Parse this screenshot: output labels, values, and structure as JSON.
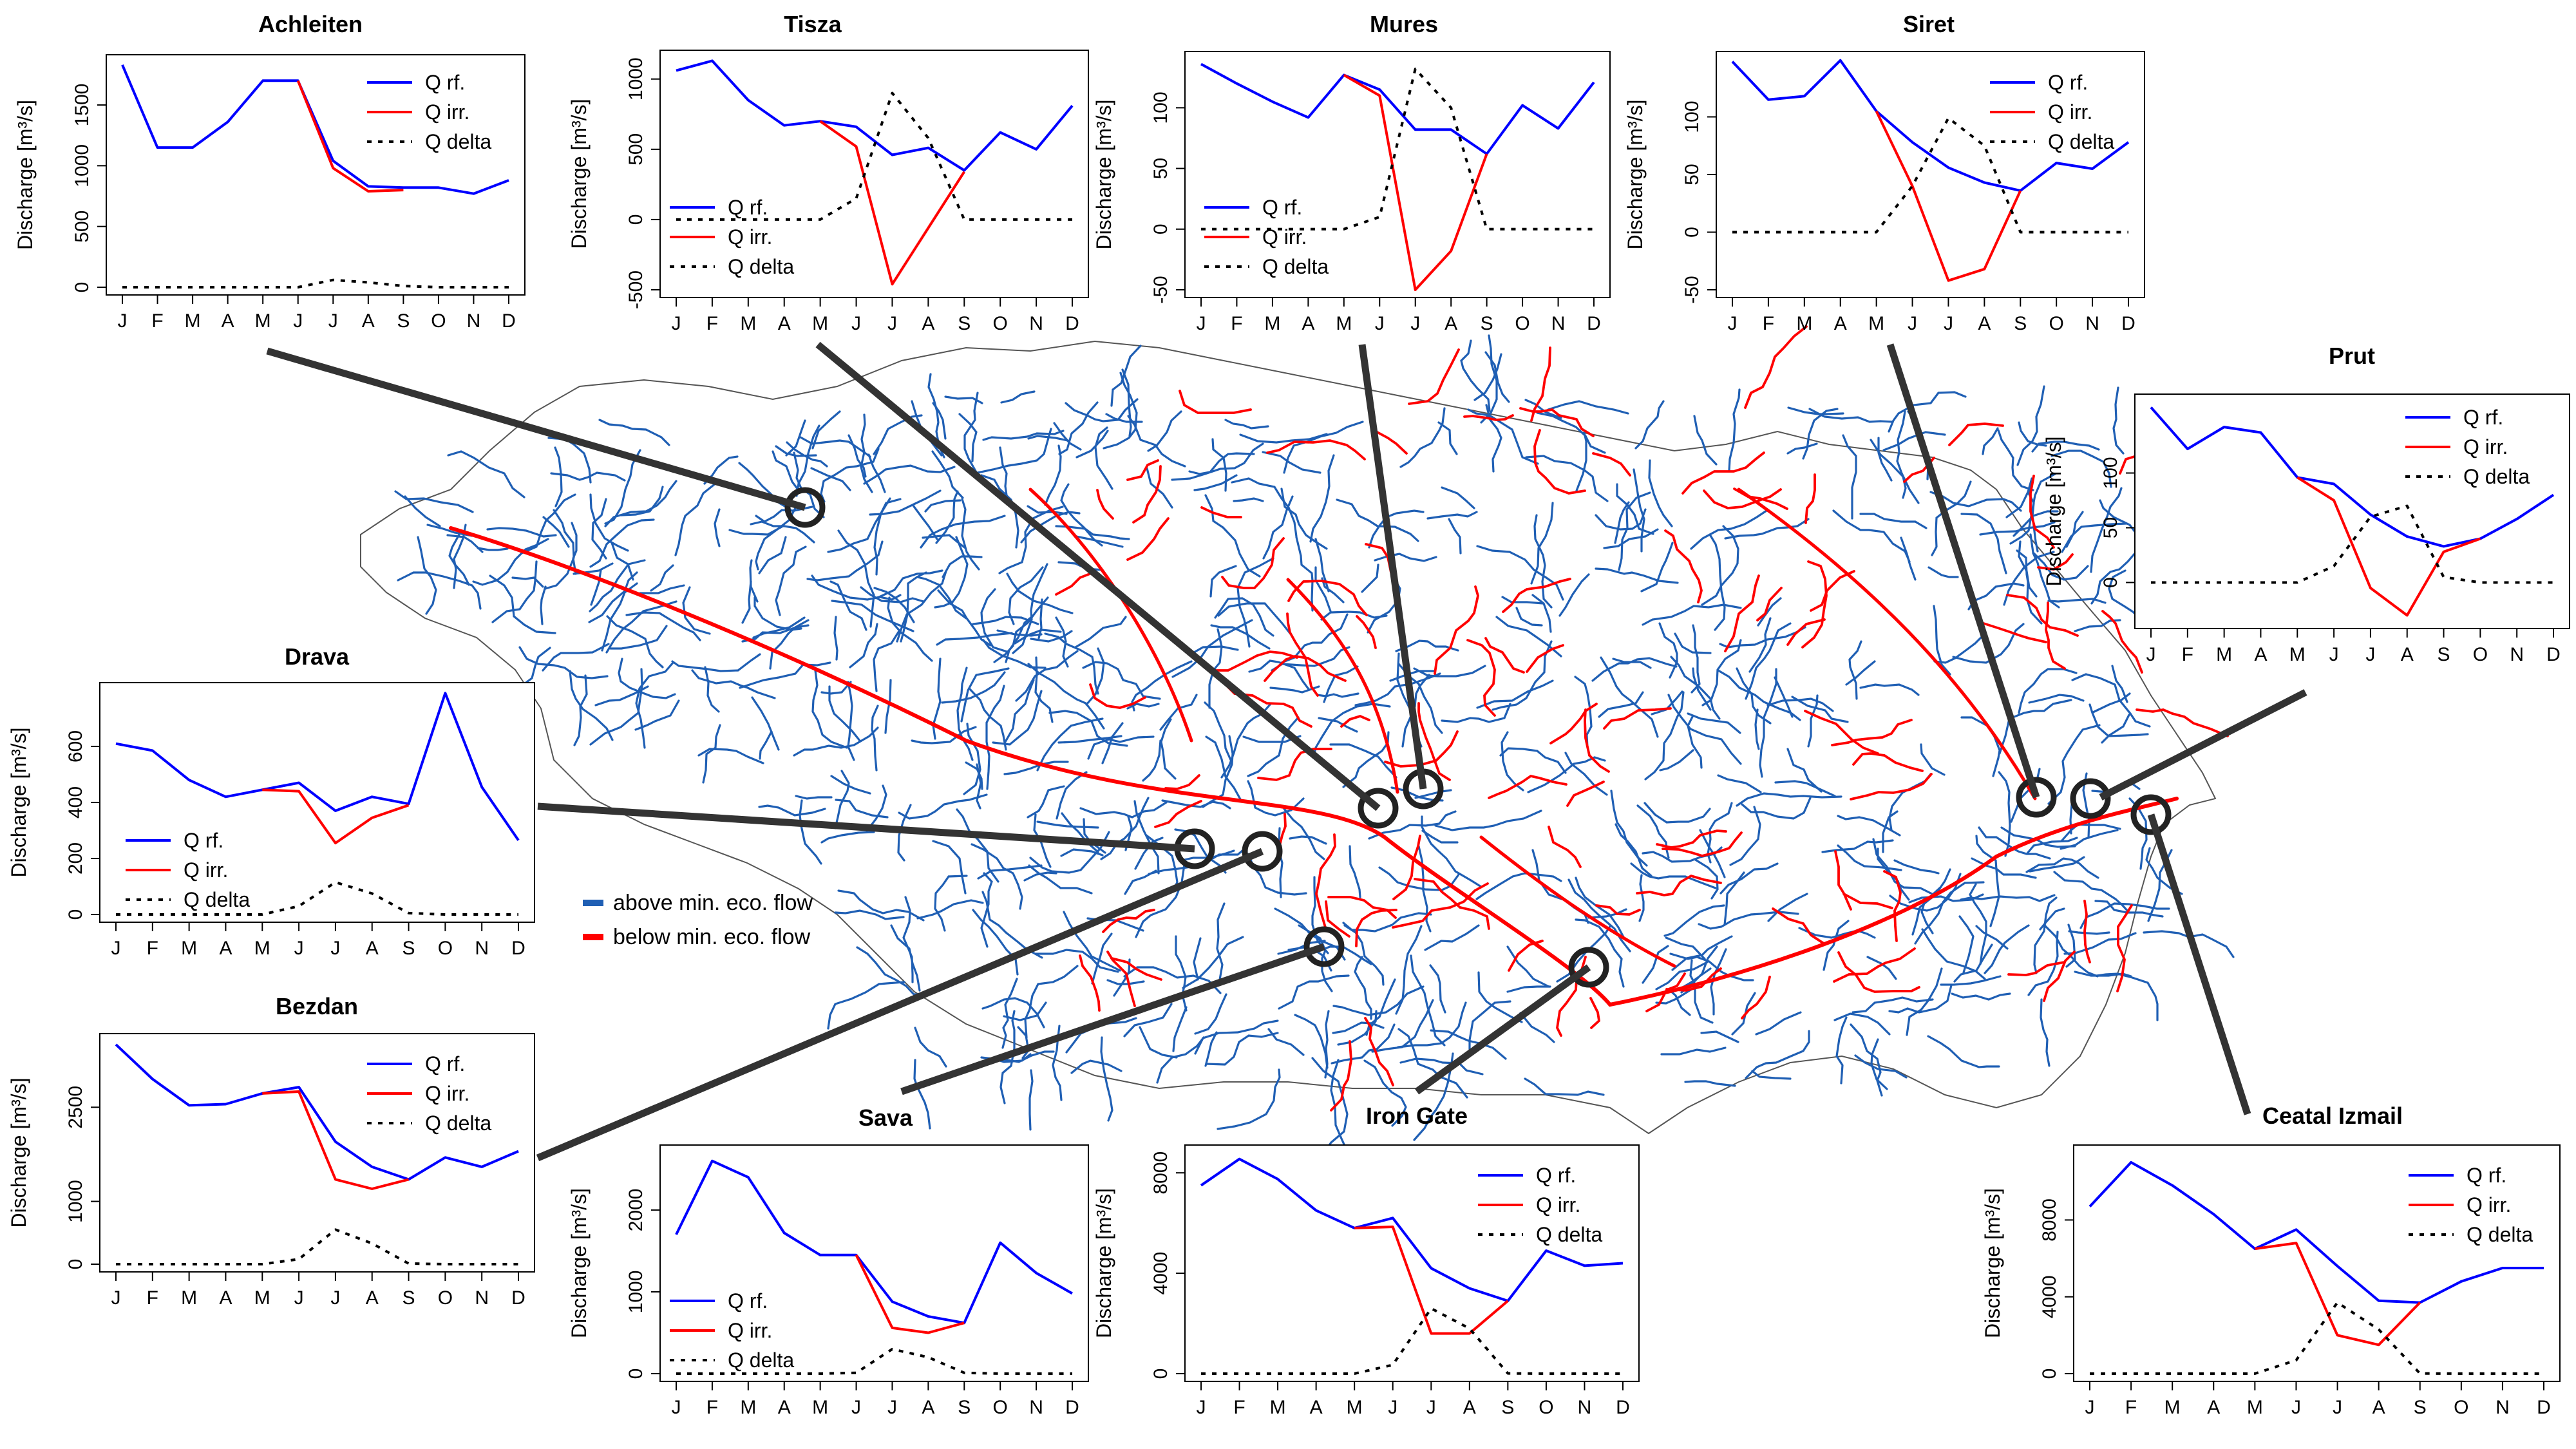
{
  "legend": {
    "above": "above min. eco. flow",
    "below": "below min. eco. flow",
    "above_color": "#1f5fb4",
    "below_color": "#ff0000"
  },
  "colors": {
    "q_rf": "#0000ff",
    "q_irr": "#ff0000",
    "q_delta": "#000000",
    "river_blue": "#1f5fb4",
    "river_red": "#ff0000",
    "connector": "#333333"
  },
  "chart_data": [
    {
      "type": "line",
      "title": "Achleiten",
      "ylabel": "Discharge [m³/s]",
      "categories": [
        "J",
        "F",
        "M",
        "A",
        "M",
        "J",
        "J",
        "A",
        "S",
        "O",
        "N",
        "D"
      ],
      "ylim": [
        0,
        1850
      ],
      "yticks": [
        0,
        500,
        1000,
        1500
      ],
      "legend_labels": [
        "Q rf.",
        "Q irr.",
        "Q delta"
      ],
      "series": [
        {
          "name": "Q rf.",
          "values": [
            1830,
            1150,
            1150,
            1360,
            1700,
            1700,
            1040,
            830,
            820,
            820,
            770,
            880
          ]
        },
        {
          "name": "Q irr.",
          "values": [
            null,
            null,
            null,
            null,
            null,
            1700,
            980,
            790,
            800,
            null,
            null,
            null
          ]
        },
        {
          "name": "Q delta",
          "values": [
            0,
            0,
            0,
            0,
            0,
            0,
            60,
            40,
            10,
            0,
            0,
            0
          ]
        }
      ]
    },
    {
      "type": "line",
      "title": "Tisza",
      "ylabel": "Discharge [m³/s]",
      "categories": [
        "J",
        "F",
        "M",
        "A",
        "M",
        "J",
        "J",
        "A",
        "S",
        "O",
        "N",
        "D"
      ],
      "ylim": [
        -500,
        1150
      ],
      "yticks": [
        -500,
        0,
        500,
        1000
      ],
      "legend_labels": [
        "Q rf.",
        "Q irr.",
        "Q delta"
      ],
      "series": [
        {
          "name": "Q rf.",
          "values": [
            1060,
            1130,
            850,
            670,
            700,
            660,
            460,
            510,
            350,
            620,
            500,
            810
          ]
        },
        {
          "name": "Q irr.",
          "values": [
            null,
            null,
            null,
            null,
            700,
            520,
            -460,
            -60,
            340,
            null,
            null,
            null
          ]
        },
        {
          "name": "Q delta",
          "values": [
            0,
            0,
            0,
            0,
            0,
            150,
            900,
            580,
            0,
            0,
            0,
            0
          ]
        }
      ]
    },
    {
      "type": "line",
      "title": "Mures",
      "ylabel": "Discharge [m³/s]",
      "categories": [
        "J",
        "F",
        "M",
        "A",
        "M",
        "J",
        "J",
        "A",
        "S",
        "O",
        "N",
        "D"
      ],
      "ylim": [
        -50,
        140
      ],
      "yticks": [
        -50,
        0,
        50,
        100
      ],
      "legend_labels": [
        "Q rf.",
        "Q irr.",
        "Q delta"
      ],
      "series": [
        {
          "name": "Q rf.",
          "values": [
            136,
            120,
            105,
            92,
            127,
            115,
            82,
            82,
            62,
            102,
            83,
            121
          ]
        },
        {
          "name": "Q irr.",
          "values": [
            null,
            null,
            null,
            null,
            127,
            110,
            -50,
            -18,
            62,
            null,
            null,
            null
          ]
        },
        {
          "name": "Q delta",
          "values": [
            0,
            0,
            0,
            0,
            0,
            10,
            132,
            100,
            0,
            0,
            0,
            0
          ]
        }
      ]
    },
    {
      "type": "line",
      "title": "Siret",
      "ylabel": "Discharge [m³/s]",
      "categories": [
        "J",
        "F",
        "M",
        "A",
        "M",
        "J",
        "J",
        "A",
        "S",
        "O",
        "N",
        "D"
      ],
      "ylim": [
        -50,
        150
      ],
      "yticks": [
        -50,
        0,
        50,
        100
      ],
      "legend_labels": [
        "Q rf.",
        "Q irr.",
        "Q delta"
      ],
      "series": [
        {
          "name": "Q rf.",
          "values": [
            148,
            115,
            118,
            149,
            105,
            78,
            56,
            43,
            36,
            60,
            55,
            78
          ]
        },
        {
          "name": "Q irr.",
          "values": [
            null,
            null,
            null,
            null,
            105,
            40,
            -42,
            -32,
            36,
            null,
            null,
            null
          ]
        },
        {
          "name": "Q delta",
          "values": [
            0,
            0,
            0,
            0,
            0,
            40,
            99,
            75,
            0,
            0,
            0,
            0
          ]
        }
      ]
    },
    {
      "type": "line",
      "title": "Prut",
      "ylabel": "Discharge [m³/s]",
      "categories": [
        "J",
        "F",
        "M",
        "A",
        "M",
        "J",
        "J",
        "A",
        "S",
        "O",
        "N",
        "D"
      ],
      "ylim": [
        -35,
        165
      ],
      "yticks": [
        0,
        50,
        100
      ],
      "legend_labels": [
        "Q rf.",
        "Q irr.",
        "Q delta"
      ],
      "series": [
        {
          "name": "Q rf.",
          "values": [
            160,
            122,
            142,
            137,
            96,
            90,
            62,
            42,
            33,
            40,
            58,
            80
          ]
        },
        {
          "name": "Q irr.",
          "values": [
            null,
            null,
            null,
            null,
            96,
            75,
            -5,
            -30,
            28,
            40,
            null,
            null
          ]
        },
        {
          "name": "Q delta",
          "values": [
            0,
            0,
            0,
            0,
            0,
            15,
            60,
            70,
            5,
            0,
            0,
            0
          ]
        }
      ]
    },
    {
      "type": "line",
      "title": "Drava",
      "ylabel": "Discharge [m³/s]",
      "categories": [
        "J",
        "F",
        "M",
        "A",
        "M",
        "J",
        "J",
        "A",
        "S",
        "O",
        "N",
        "D"
      ],
      "ylim": [
        0,
        800
      ],
      "yticks": [
        0,
        200,
        400,
        600
      ],
      "legend_labels": [
        "Q rf.",
        "Q irr.",
        "Q delta"
      ],
      "series": [
        {
          "name": "Q rf.",
          "values": [
            610,
            585,
            480,
            420,
            445,
            470,
            370,
            420,
            395,
            790,
            455,
            265
          ]
        },
        {
          "name": "Q irr.",
          "values": [
            null,
            null,
            null,
            null,
            445,
            440,
            255,
            345,
            390,
            null,
            null,
            null
          ]
        },
        {
          "name": "Q delta",
          "values": [
            0,
            0,
            0,
            0,
            0,
            30,
            115,
            75,
            5,
            0,
            0,
            0
          ]
        }
      ]
    },
    {
      "type": "line",
      "title": "Bezdan",
      "ylabel": "Discharge [m³/s]",
      "categories": [
        "J",
        "F",
        "M",
        "A",
        "M",
        "J",
        "J",
        "A",
        "S",
        "O",
        "N",
        "D"
      ],
      "ylim": [
        0,
        3550
      ],
      "yticks": [
        0,
        1000,
        2500
      ],
      "legend_labels": [
        "Q rf.",
        "Q irr.",
        "Q delta"
      ],
      "series": [
        {
          "name": "Q rf.",
          "values": [
            3500,
            2950,
            2530,
            2550,
            2720,
            2820,
            1950,
            1550,
            1350,
            1700,
            1550,
            1800
          ]
        },
        {
          "name": "Q irr.",
          "values": [
            null,
            null,
            null,
            null,
            2720,
            2750,
            1350,
            1200,
            1350,
            null,
            null,
            null
          ]
        },
        {
          "name": "Q delta",
          "values": [
            0,
            0,
            0,
            0,
            0,
            80,
            550,
            330,
            10,
            0,
            0,
            0
          ]
        }
      ]
    },
    {
      "type": "line",
      "title": "Sava",
      "ylabel": "Discharge [m³/s]",
      "categories": [
        "J",
        "F",
        "M",
        "A",
        "M",
        "J",
        "J",
        "A",
        "S",
        "O",
        "N",
        "D"
      ],
      "ylim": [
        0,
        2700
      ],
      "yticks": [
        0,
        1000,
        2000
      ],
      "legend_labels": [
        "Q rf.",
        "Q irr.",
        "Q delta"
      ],
      "series": [
        {
          "name": "Q rf.",
          "values": [
            1700,
            2600,
            2400,
            1720,
            1450,
            1450,
            880,
            700,
            620,
            1600,
            1230,
            980
          ]
        },
        {
          "name": "Q irr.",
          "values": [
            null,
            null,
            null,
            null,
            null,
            1450,
            560,
            500,
            620,
            null,
            null,
            null
          ]
        },
        {
          "name": "Q delta",
          "values": [
            0,
            0,
            0,
            0,
            0,
            10,
            300,
            200,
            10,
            0,
            0,
            0
          ]
        }
      ]
    },
    {
      "type": "line",
      "title": "Iron Gate",
      "ylabel": "Discharge [m³/s]",
      "categories": [
        "J",
        "F",
        "M",
        "A",
        "M",
        "J",
        "J",
        "A",
        "S",
        "O",
        "N",
        "D"
      ],
      "ylim": [
        0,
        8800
      ],
      "yticks": [
        0,
        4000,
        8000
      ],
      "legend_labels": [
        "Q rf.",
        "Q irr.",
        "Q delta"
      ],
      "series": [
        {
          "name": "Q rf.",
          "values": [
            7500,
            8550,
            7750,
            6500,
            5800,
            6200,
            4200,
            3400,
            2900,
            4900,
            4300,
            4400
          ]
        },
        {
          "name": "Q irr.",
          "values": [
            null,
            null,
            null,
            null,
            5800,
            5850,
            1600,
            1600,
            2900,
            null,
            null,
            null
          ]
        },
        {
          "name": "Q delta",
          "values": [
            0,
            0,
            0,
            0,
            0,
            350,
            2600,
            1800,
            10,
            0,
            0,
            0
          ]
        }
      ]
    },
    {
      "type": "line",
      "title": "Ceatal Izmail",
      "ylabel": "Discharge [m³/s]",
      "categories": [
        "J",
        "F",
        "M",
        "A",
        "M",
        "J",
        "J",
        "A",
        "S",
        "O",
        "N",
        "D"
      ],
      "ylim": [
        0,
        11500
      ],
      "yticks": [
        0,
        4000,
        8000
      ],
      "legend_labels": [
        "Q rf.",
        "Q irr.",
        "Q delta"
      ],
      "series": [
        {
          "name": "Q rf.",
          "values": [
            8700,
            11000,
            9800,
            8300,
            6500,
            7500,
            5600,
            3800,
            3700,
            4800,
            5500,
            5500
          ]
        },
        {
          "name": "Q irr.",
          "values": [
            null,
            null,
            null,
            null,
            6500,
            6800,
            2000,
            1500,
            3700,
            null,
            null,
            null
          ]
        },
        {
          "name": "Q delta",
          "values": [
            0,
            0,
            0,
            0,
            0,
            700,
            3700,
            2300,
            10,
            0,
            0,
            0
          ]
        }
      ]
    }
  ]
}
